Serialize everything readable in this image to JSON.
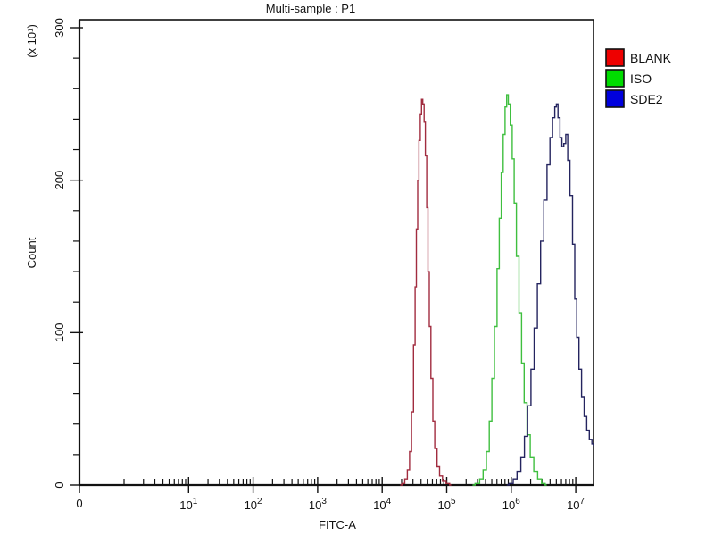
{
  "title": "Multi-sample : P1",
  "chart_data": {
    "type": "line",
    "subtype": "flow-cytometry-histogram",
    "title": "Multi-sample : P1",
    "xlabel": "FITC-A",
    "ylabel": "Count",
    "y_multiplier_label": "(x 10¹)",
    "x_scale": "log",
    "x_axis": {
      "zero_tick_label": "0",
      "major_exponents": [
        1,
        2,
        3,
        4,
        5,
        6,
        7
      ],
      "minor_ticks": "2-9 per decade from 10^0 to 2x10^7",
      "max_log": 7.28
    },
    "y_axis": {
      "ticks": [
        0,
        100,
        200,
        300
      ],
      "minor_step": 20,
      "ylim": [
        0,
        300
      ],
      "units_multiplier": "x 10^1"
    },
    "grid": false,
    "legend_position": "top-right-outside",
    "series": [
      {
        "name": "BLANK",
        "legend_color": "#ee0000",
        "curve_color": "#a12c3f",
        "peak": {
          "logx": 4.62,
          "count": 253
        },
        "points_logx_count": [
          [
            4.28,
            0
          ],
          [
            4.33,
            1
          ],
          [
            4.37,
            4
          ],
          [
            4.41,
            10
          ],
          [
            4.44,
            22
          ],
          [
            4.47,
            48
          ],
          [
            4.5,
            92
          ],
          [
            4.52,
            130
          ],
          [
            4.54,
            168
          ],
          [
            4.56,
            200
          ],
          [
            4.58,
            226
          ],
          [
            4.6,
            243
          ],
          [
            4.62,
            253
          ],
          [
            4.64,
            250
          ],
          [
            4.66,
            238
          ],
          [
            4.68,
            216
          ],
          [
            4.7,
            182
          ],
          [
            4.72,
            140
          ],
          [
            4.74,
            104
          ],
          [
            4.77,
            70
          ],
          [
            4.8,
            42
          ],
          [
            4.83,
            24
          ],
          [
            4.87,
            12
          ],
          [
            4.91,
            6
          ],
          [
            4.96,
            3
          ],
          [
            5.02,
            1
          ],
          [
            5.07,
            0
          ]
        ]
      },
      {
        "name": "ISO",
        "legend_color": "#00dd00",
        "curve_color": "#3fbf3f",
        "peak": {
          "logx": 5.94,
          "count": 256
        },
        "points_logx_count": [
          [
            5.4,
            0
          ],
          [
            5.48,
            1
          ],
          [
            5.54,
            4
          ],
          [
            5.59,
            10
          ],
          [
            5.64,
            22
          ],
          [
            5.68,
            42
          ],
          [
            5.72,
            70
          ],
          [
            5.76,
            104
          ],
          [
            5.8,
            142
          ],
          [
            5.83,
            175
          ],
          [
            5.86,
            205
          ],
          [
            5.89,
            230
          ],
          [
            5.92,
            248
          ],
          [
            5.94,
            256
          ],
          [
            5.97,
            250
          ],
          [
            6.0,
            236
          ],
          [
            6.03,
            214
          ],
          [
            6.06,
            185
          ],
          [
            6.1,
            150
          ],
          [
            6.14,
            113
          ],
          [
            6.18,
            80
          ],
          [
            6.22,
            54
          ],
          [
            6.27,
            33
          ],
          [
            6.32,
            18
          ],
          [
            6.38,
            9
          ],
          [
            6.44,
            4
          ],
          [
            6.5,
            1
          ],
          [
            6.55,
            0
          ]
        ]
      },
      {
        "name": "SDE2",
        "legend_color": "#0000dd",
        "curve_color": "#24245f",
        "peak": {
          "logx": 6.71,
          "count": 250
        },
        "points_logx_count": [
          [
            5.93,
            0
          ],
          [
            6.0,
            1
          ],
          [
            6.06,
            4
          ],
          [
            6.12,
            9
          ],
          [
            6.18,
            18
          ],
          [
            6.23,
            32
          ],
          [
            6.28,
            52
          ],
          [
            6.33,
            76
          ],
          [
            6.38,
            103
          ],
          [
            6.43,
            132
          ],
          [
            6.48,
            160
          ],
          [
            6.53,
            187
          ],
          [
            6.58,
            210
          ],
          [
            6.62,
            228
          ],
          [
            6.66,
            241
          ],
          [
            6.69,
            248
          ],
          [
            6.71,
            250
          ],
          [
            6.74,
            241
          ],
          [
            6.77,
            228
          ],
          [
            6.8,
            222
          ],
          [
            6.83,
            224
          ],
          [
            6.86,
            230
          ],
          [
            6.89,
            213
          ],
          [
            6.93,
            190
          ],
          [
            6.97,
            158
          ],
          [
            7.0,
            122
          ],
          [
            7.03,
            97
          ],
          [
            7.07,
            76
          ],
          [
            7.11,
            58
          ],
          [
            7.15,
            45
          ],
          [
            7.19,
            36
          ],
          [
            7.23,
            30
          ],
          [
            7.27,
            27
          ],
          [
            7.28,
            26
          ]
        ]
      }
    ]
  }
}
